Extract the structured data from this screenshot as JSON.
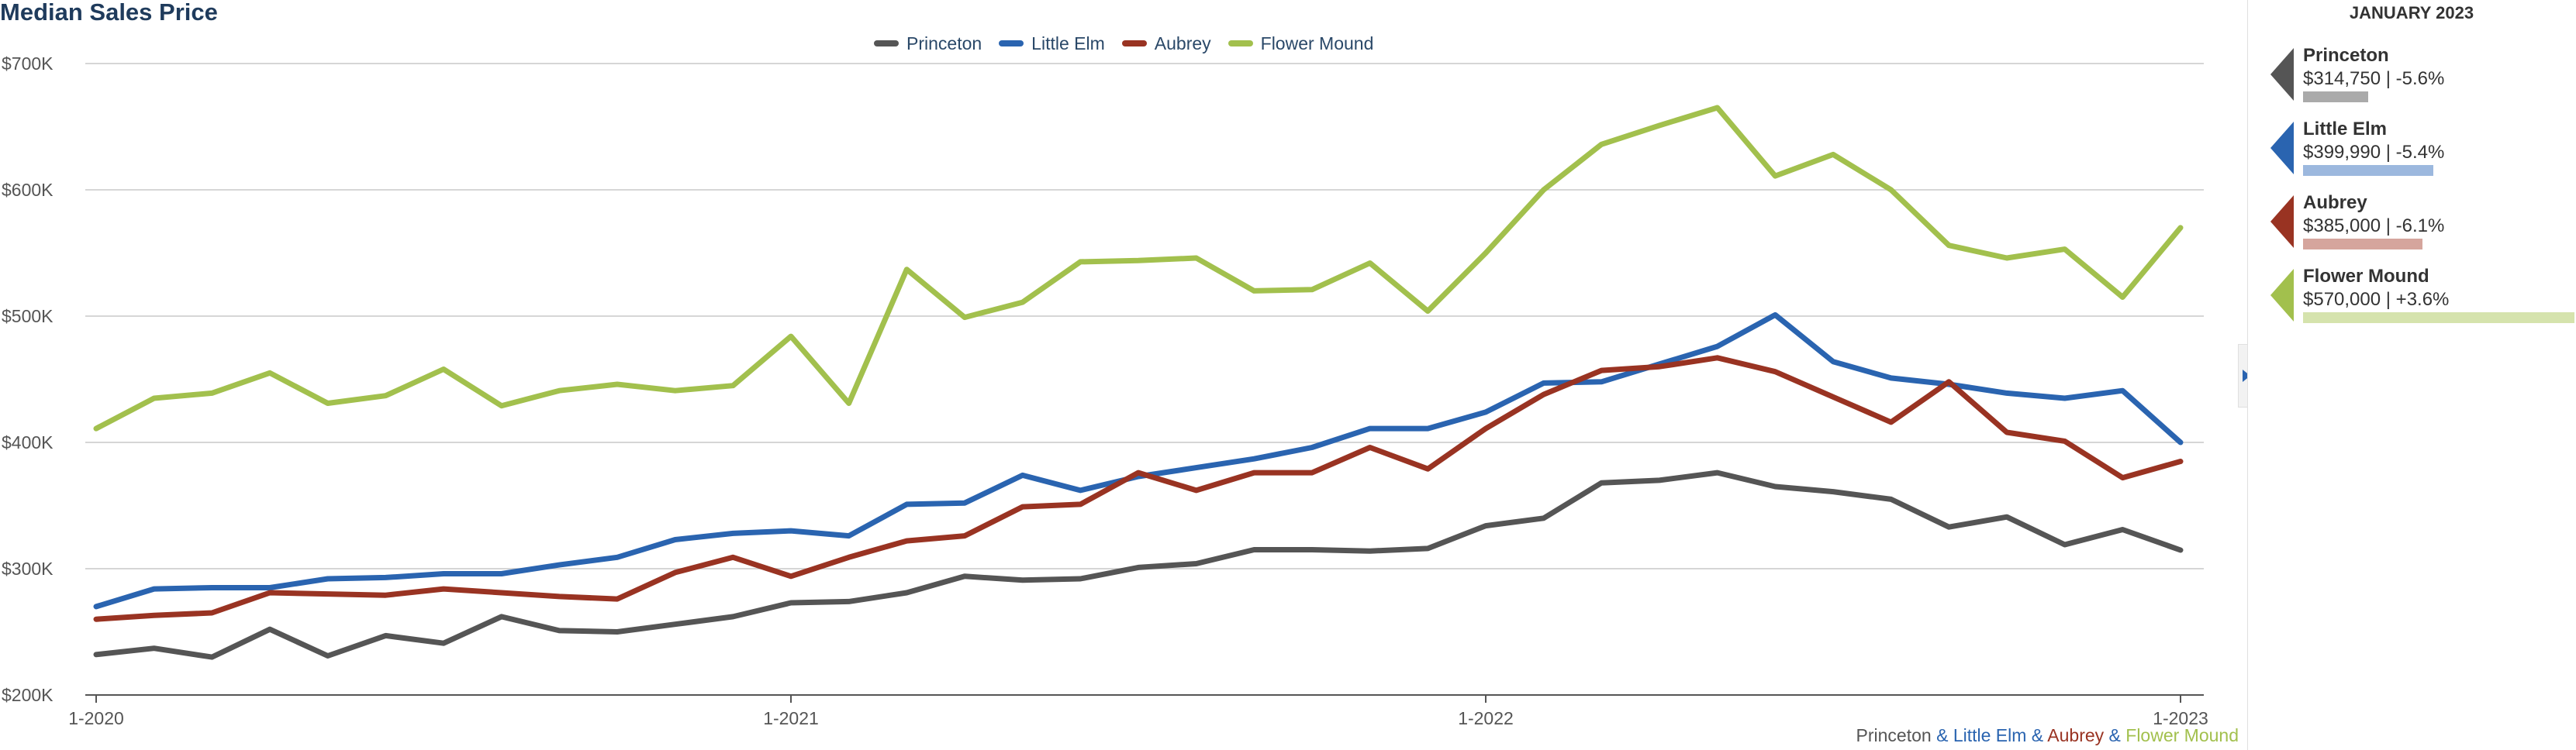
{
  "chart_data": {
    "type": "line",
    "title": "Median Sales Price",
    "x": [
      "1-2020",
      "2-2020",
      "3-2020",
      "4-2020",
      "5-2020",
      "6-2020",
      "7-2020",
      "8-2020",
      "9-2020",
      "10-2020",
      "11-2020",
      "12-2020",
      "1-2021",
      "2-2021",
      "3-2021",
      "4-2021",
      "5-2021",
      "6-2021",
      "7-2021",
      "8-2021",
      "9-2021",
      "10-2021",
      "11-2021",
      "12-2021",
      "1-2022",
      "2-2022",
      "3-2022",
      "4-2022",
      "5-2022",
      "6-2022",
      "7-2022",
      "8-2022",
      "9-2022",
      "10-2022",
      "11-2022",
      "12-2022",
      "1-2023"
    ],
    "x_ticks": [
      "1-2020",
      "1-2021",
      "1-2022",
      "1-2023"
    ],
    "ylim": [
      200000,
      700000
    ],
    "y_ticks": [
      "$200K",
      "$300K",
      "$400K",
      "$500K",
      "$600K",
      "$700K"
    ],
    "y_tick_values": [
      200000,
      300000,
      400000,
      500000,
      600000,
      700000
    ],
    "grid": true,
    "legend_position": "top-center",
    "series": [
      {
        "name": "Princeton",
        "color": "#555555",
        "values": [
          232000,
          237000,
          230000,
          252000,
          231000,
          247000,
          241000,
          262000,
          251000,
          250000,
          256000,
          262000,
          273000,
          274000,
          281000,
          294000,
          291000,
          292000,
          301000,
          304000,
          315000,
          315000,
          314000,
          316000,
          334000,
          340000,
          368000,
          370000,
          376000,
          365000,
          361000,
          355000,
          333000,
          341000,
          319000,
          331000,
          314750
        ]
      },
      {
        "name": "Little Elm",
        "color": "#2a64b0",
        "values": [
          270000,
          284000,
          285000,
          285000,
          292000,
          293000,
          296000,
          296000,
          303000,
          309000,
          323000,
          328000,
          330000,
          326000,
          351000,
          352000,
          374000,
          362000,
          373000,
          380000,
          387000,
          396000,
          411000,
          411000,
          424000,
          447000,
          448000,
          462000,
          476000,
          501000,
          464000,
          451000,
          446000,
          439000,
          435000,
          441000,
          399990
        ]
      },
      {
        "name": "Aubrey",
        "color": "#993322",
        "values": [
          260000,
          263000,
          265000,
          281000,
          280000,
          279000,
          284000,
          281000,
          278000,
          276000,
          297000,
          309000,
          294000,
          309000,
          322000,
          326000,
          349000,
          351000,
          376000,
          362000,
          376000,
          376000,
          396000,
          379000,
          411000,
          438000,
          457000,
          460000,
          467000,
          456000,
          436000,
          416000,
          448000,
          408000,
          401000,
          372000,
          385000
        ]
      },
      {
        "name": "Flower Mound",
        "color": "#a2c04d",
        "values": [
          411000,
          435000,
          439000,
          455000,
          431000,
          437000,
          458000,
          429000,
          441000,
          446000,
          441000,
          445000,
          484000,
          431000,
          537000,
          499000,
          511000,
          543000,
          544000,
          546000,
          520000,
          521000,
          542000,
          504000,
          550000,
          600000,
          636000,
          651000,
          665000,
          611000,
          628000,
          600000,
          556000,
          546000,
          553000,
          515000,
          570000
        ]
      }
    ]
  },
  "footer_note": {
    "princeton": "Princeton",
    "little_elm": "Little Elm",
    "aubrey": "Aubrey",
    "flower_mound": "Flower Mound",
    "amp1": " & ",
    "amp2": " & ",
    "amp3": " & "
  },
  "side_panel": {
    "title": "JANUARY 2023",
    "items": [
      {
        "name": "Princeton",
        "value": "$314,750 | -5.6%",
        "color": "#555555",
        "bar_color": "#aaaaaa",
        "bar_fraction": 0.24
      },
      {
        "name": "Little Elm",
        "value": "$399,990 | -5.4%",
        "color": "#2a64b0",
        "bar_color": "#9cb8de",
        "bar_fraction": 0.48
      },
      {
        "name": "Aubrey",
        "value": "$385,000 | -6.1%",
        "color": "#993322",
        "bar_color": "#d5a59d",
        "bar_fraction": 0.44
      },
      {
        "name": "Flower Mound",
        "value": "$570,000 | +3.6%",
        "color": "#a2c04d",
        "bar_color": "#d5e3ad",
        "bar_fraction": 1.0
      }
    ]
  }
}
